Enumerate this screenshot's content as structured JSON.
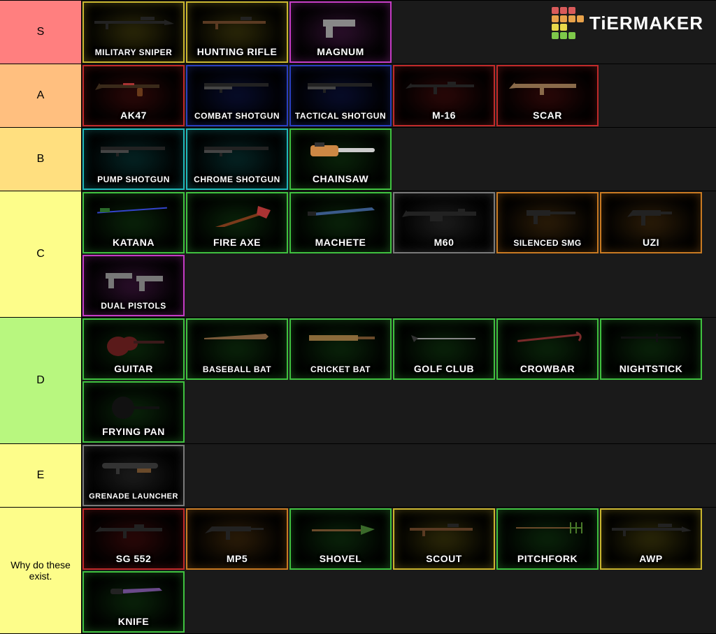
{
  "background_color": "#1a1a1a",
  "item_size": {
    "w": 146,
    "h": 88
  },
  "label_col_width": 117,
  "logo": {
    "text": "TiERMAKER",
    "grid_colors": [
      "#d85a5a",
      "#d85a5a",
      "#d85a5a",
      "transparent",
      "#e8a24a",
      "#e8a24a",
      "#e8a24a",
      "#e8a24a",
      "#e8d84a",
      "#e8d84a",
      "transparent",
      "transparent",
      "#7ec94a",
      "#7ec94a",
      "#7ec94a",
      "transparent"
    ]
  },
  "border_colors": {
    "yellow": "#c9b52e",
    "magenta": "#c43bc4",
    "red": "#c12a2a",
    "blue": "#2a3fbf",
    "teal": "#1fb8b8",
    "green": "#3fc13f",
    "grey": "#7a7a7a",
    "orange": "#c97a22"
  },
  "glow_colors": {
    "yellow": "#5a5210",
    "magenta": "#5a1f5a",
    "red": "#5a1010",
    "blue": "#101a5a",
    "teal": "#0a4a4a",
    "green": "#144a14",
    "grey": "#3a3a3a",
    "orange": "#5a3a10"
  },
  "tiers": [
    {
      "key": "S",
      "label": "S",
      "bg": "#ff7f7f",
      "items": [
        {
          "label": "MILITARY SNIPER",
          "color": "yellow",
          "shape": "sniper",
          "size": "small"
        },
        {
          "label": "HUNTING RIFLE",
          "color": "yellow",
          "shape": "rifle_scope"
        },
        {
          "label": "MAGNUM",
          "color": "magenta",
          "shape": "pistol"
        }
      ]
    },
    {
      "key": "A",
      "label": "A",
      "bg": "#ffbf7f",
      "items": [
        {
          "label": "AK47",
          "color": "red",
          "shape": "ak"
        },
        {
          "label": "COMBAT SHOTGUN",
          "color": "blue",
          "shape": "shotgun",
          "size": "small"
        },
        {
          "label": "TACTICAL SHOTGUN",
          "color": "blue",
          "shape": "shotgun",
          "size": "small"
        },
        {
          "label": "M-16",
          "color": "red",
          "shape": "m16"
        },
        {
          "label": "SCAR",
          "color": "red",
          "shape": "scar"
        }
      ]
    },
    {
      "key": "B",
      "label": "B",
      "bg": "#ffdf7f",
      "items": [
        {
          "label": "PUMP SHOTGUN",
          "color": "teal",
          "shape": "shotgun",
          "size": "small"
        },
        {
          "label": "CHROME SHOTGUN",
          "color": "teal",
          "shape": "shotgun",
          "size": "small"
        },
        {
          "label": "CHAINSAW",
          "color": "green",
          "shape": "chainsaw"
        }
      ]
    },
    {
      "key": "C",
      "label": "C",
      "bg": "#fdfd8a",
      "items": [
        {
          "label": "KATANA",
          "color": "green",
          "shape": "katana"
        },
        {
          "label": "FIRE AXE",
          "color": "green",
          "shape": "axe"
        },
        {
          "label": "MACHETE",
          "color": "green",
          "shape": "machete"
        },
        {
          "label": "M60",
          "color": "grey",
          "shape": "m60"
        },
        {
          "label": "SILENCED SMG",
          "color": "orange",
          "shape": "smg_silenced",
          "size": "small"
        },
        {
          "label": "UZI",
          "color": "orange",
          "shape": "uzi"
        },
        {
          "label": "DUAL PISTOLS",
          "color": "magenta",
          "shape": "dual",
          "size": "small"
        }
      ]
    },
    {
      "key": "D",
      "label": "D",
      "bg": "#b8f77f",
      "items": [
        {
          "label": "GUITAR",
          "color": "green",
          "shape": "guitar"
        },
        {
          "label": "BASEBALL BAT",
          "color": "green",
          "shape": "bat",
          "size": "small"
        },
        {
          "label": "CRICKET BAT",
          "color": "green",
          "shape": "cricket",
          "size": "small"
        },
        {
          "label": "GOLF CLUB",
          "color": "green",
          "shape": "golf"
        },
        {
          "label": "CROWBAR",
          "color": "green",
          "shape": "crowbar"
        },
        {
          "label": "NIGHTSTICK",
          "color": "green",
          "shape": "stick"
        },
        {
          "label": "FRYING PAN",
          "color": "green",
          "shape": "pan"
        }
      ]
    },
    {
      "key": "E",
      "label": "E",
      "bg": "#fdfd8a",
      "items": [
        {
          "label": "GRENADE LAUNCHER",
          "color": "grey",
          "shape": "launcher",
          "size": "xsmall"
        }
      ]
    },
    {
      "key": "F",
      "label": "Why do these exist.",
      "bg": "#fdfd8a",
      "label_size": "small",
      "items": [
        {
          "label": "SG 552",
          "color": "red",
          "shape": "sg"
        },
        {
          "label": "MP5",
          "color": "orange",
          "shape": "mp5"
        },
        {
          "label": "SHOVEL",
          "color": "green",
          "shape": "shovel"
        },
        {
          "label": "SCOUT",
          "color": "yellow",
          "shape": "rifle_scope"
        },
        {
          "label": "PITCHFORK",
          "color": "green",
          "shape": "pitchfork"
        },
        {
          "label": "AWP",
          "color": "yellow",
          "shape": "sniper"
        },
        {
          "label": "KNIFE",
          "color": "green",
          "shape": "knife"
        }
      ]
    }
  ]
}
